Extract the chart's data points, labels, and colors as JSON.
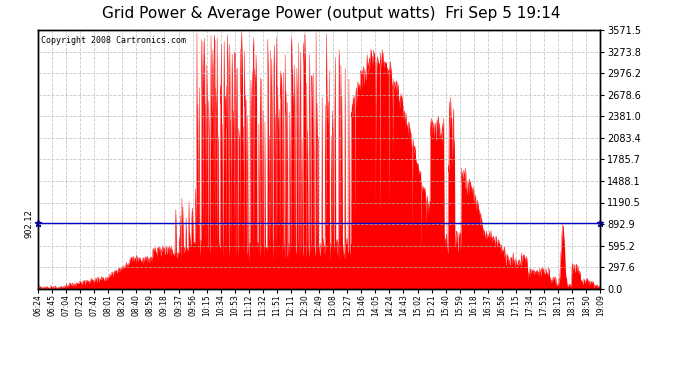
{
  "title": "Grid Power & Average Power (output watts)  Fri Sep 5 19:14",
  "copyright": "Copyright 2008 Cartronics.com",
  "avg_line_value": 902.12,
  "avg_line_label": "902.12",
  "y_ticks": [
    0.0,
    297.6,
    595.2,
    892.9,
    1190.5,
    1488.1,
    1785.7,
    2083.4,
    2381.0,
    2678.6,
    2976.2,
    3273.8,
    3571.5
  ],
  "x_tick_labels": [
    "06:24",
    "06:45",
    "07:04",
    "07:23",
    "07:42",
    "08:01",
    "08:20",
    "08:40",
    "08:59",
    "09:18",
    "09:37",
    "09:56",
    "10:15",
    "10:34",
    "10:53",
    "11:12",
    "11:32",
    "11:51",
    "12:11",
    "12:30",
    "12:49",
    "13:08",
    "13:27",
    "13:46",
    "14:05",
    "14:24",
    "14:43",
    "15:02",
    "15:21",
    "15:40",
    "15:59",
    "16:18",
    "16:37",
    "16:56",
    "17:15",
    "17:34",
    "17:53",
    "18:12",
    "18:31",
    "18:50",
    "19:09"
  ],
  "background_color": "#ffffff",
  "plot_bg_color": "#ffffff",
  "grid_color": "#bbbbbb",
  "fill_color": "#ff0000",
  "line_color": "#ff0000",
  "avg_line_color": "#0000cc",
  "title_fontsize": 11,
  "y_max": 3571.5,
  "y_min": 0.0,
  "hour_start": 6.4,
  "hour_end": 19.15
}
